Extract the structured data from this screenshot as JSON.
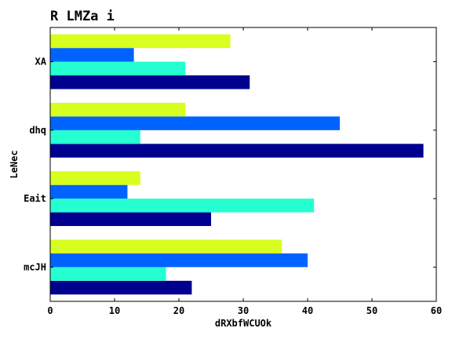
{
  "chart_data": {
    "type": "bar",
    "orientation": "horizontal",
    "title": "R LMZa i",
    "xlabel": "dRXbfWCUOk",
    "ylabel": "LeNec",
    "xlim": [
      0,
      60
    ],
    "xticks": [
      0,
      10,
      20,
      30,
      40,
      50,
      60
    ],
    "categories": [
      "mcJH",
      "Eait",
      "dhq",
      "XA"
    ],
    "series": [
      {
        "color": "#00008f",
        "values": [
          22,
          25,
          58,
          31
        ]
      },
      {
        "color": "#26ffd1",
        "values": [
          18,
          41,
          14,
          21
        ]
      },
      {
        "color": "#0063ff",
        "values": [
          40,
          12,
          45,
          13
        ]
      },
      {
        "color": "#d7ff1f",
        "values": [
          36,
          14,
          21,
          28
        ]
      }
    ],
    "grid": false,
    "legend": "none"
  }
}
